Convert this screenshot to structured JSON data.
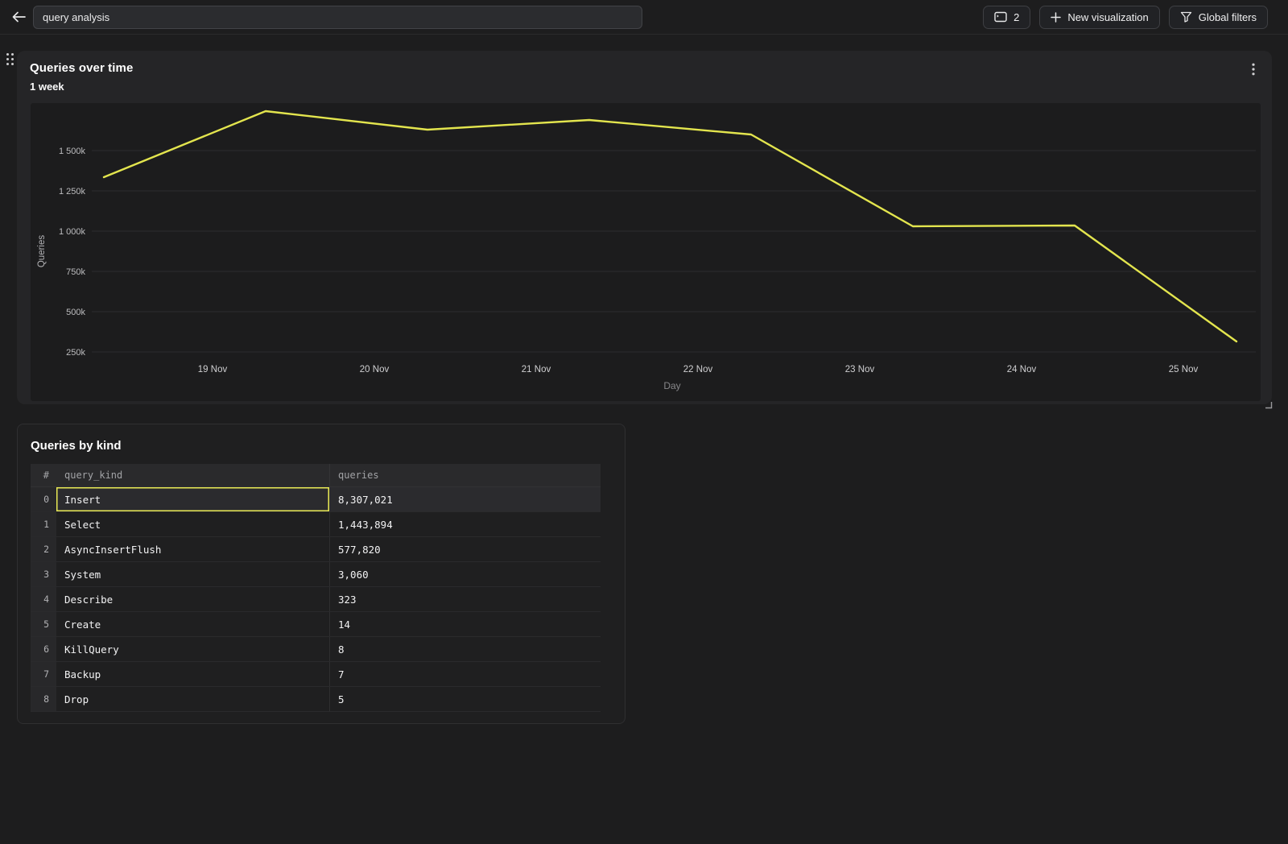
{
  "topbar": {
    "search_input": {
      "value": "query analysis"
    },
    "screens_button": {
      "count": "2"
    },
    "new_visualization_button": {
      "label": "New visualization"
    },
    "global_filters_button": {
      "label": "Global filters"
    }
  },
  "chart_data": {
    "type": "line",
    "title": "Queries over time",
    "subtitle": "1 week",
    "xlabel": "Day",
    "ylabel": "Queries",
    "grid": true,
    "legend": false,
    "x_tick_labels": [
      "19 Nov",
      "20 Nov",
      "21 Nov",
      "22 Nov",
      "23 Nov",
      "24 Nov",
      "25 Nov"
    ],
    "y_ticks": [
      {
        "label": "1 500k",
        "value": 1500000
      },
      {
        "label": "1 250k",
        "value": 1250000
      },
      {
        "label": "1 000k",
        "value": 1000000
      },
      {
        "label": "750k",
        "value": 750000
      },
      {
        "label": "500k",
        "value": 500000
      },
      {
        "label": "250k",
        "value": 250000
      }
    ],
    "series": [
      {
        "name": "Queries",
        "color": "#e3e54e",
        "points": [
          {
            "x": "18 Nov",
            "value": 1335000
          },
          {
            "x": "19 Nov",
            "value": 1745000
          },
          {
            "x": "20 Nov",
            "value": 1630000
          },
          {
            "x": "21 Nov",
            "value": 1690000
          },
          {
            "x": "22 Nov",
            "value": 1600000
          },
          {
            "x": "23 Nov",
            "value": 1030000
          },
          {
            "x": "24 Nov",
            "value": 1035000
          },
          {
            "x": "25 Nov",
            "value": 315000
          }
        ]
      }
    ]
  },
  "table_panel": {
    "title": "Queries by kind",
    "columns": [
      "#",
      "query_kind",
      "queries"
    ],
    "rows": [
      {
        "index": "0",
        "query_kind": "Insert",
        "queries": "8,307,021",
        "selected": true
      },
      {
        "index": "1",
        "query_kind": "Select",
        "queries": "1,443,894",
        "selected": false
      },
      {
        "index": "2",
        "query_kind": "AsyncInsertFlush",
        "queries": "577,820",
        "selected": false
      },
      {
        "index": "3",
        "query_kind": "System",
        "queries": "3,060",
        "selected": false
      },
      {
        "index": "4",
        "query_kind": "Describe",
        "queries": "323",
        "selected": false
      },
      {
        "index": "5",
        "query_kind": "Create",
        "queries": "14",
        "selected": false
      },
      {
        "index": "6",
        "query_kind": "KillQuery",
        "queries": "8",
        "selected": false
      },
      {
        "index": "7",
        "query_kind": "Backup",
        "queries": "7",
        "selected": false
      },
      {
        "index": "8",
        "query_kind": "Drop",
        "queries": "5",
        "selected": false
      }
    ]
  },
  "colors": {
    "page_bg": "#1d1d1e",
    "panel_bg": "#252527",
    "chart_bg": "#1c1c1d",
    "gridline": "#2d2d2f",
    "accent_line": "#e3e54e",
    "selection_outline": "#e8e954"
  }
}
